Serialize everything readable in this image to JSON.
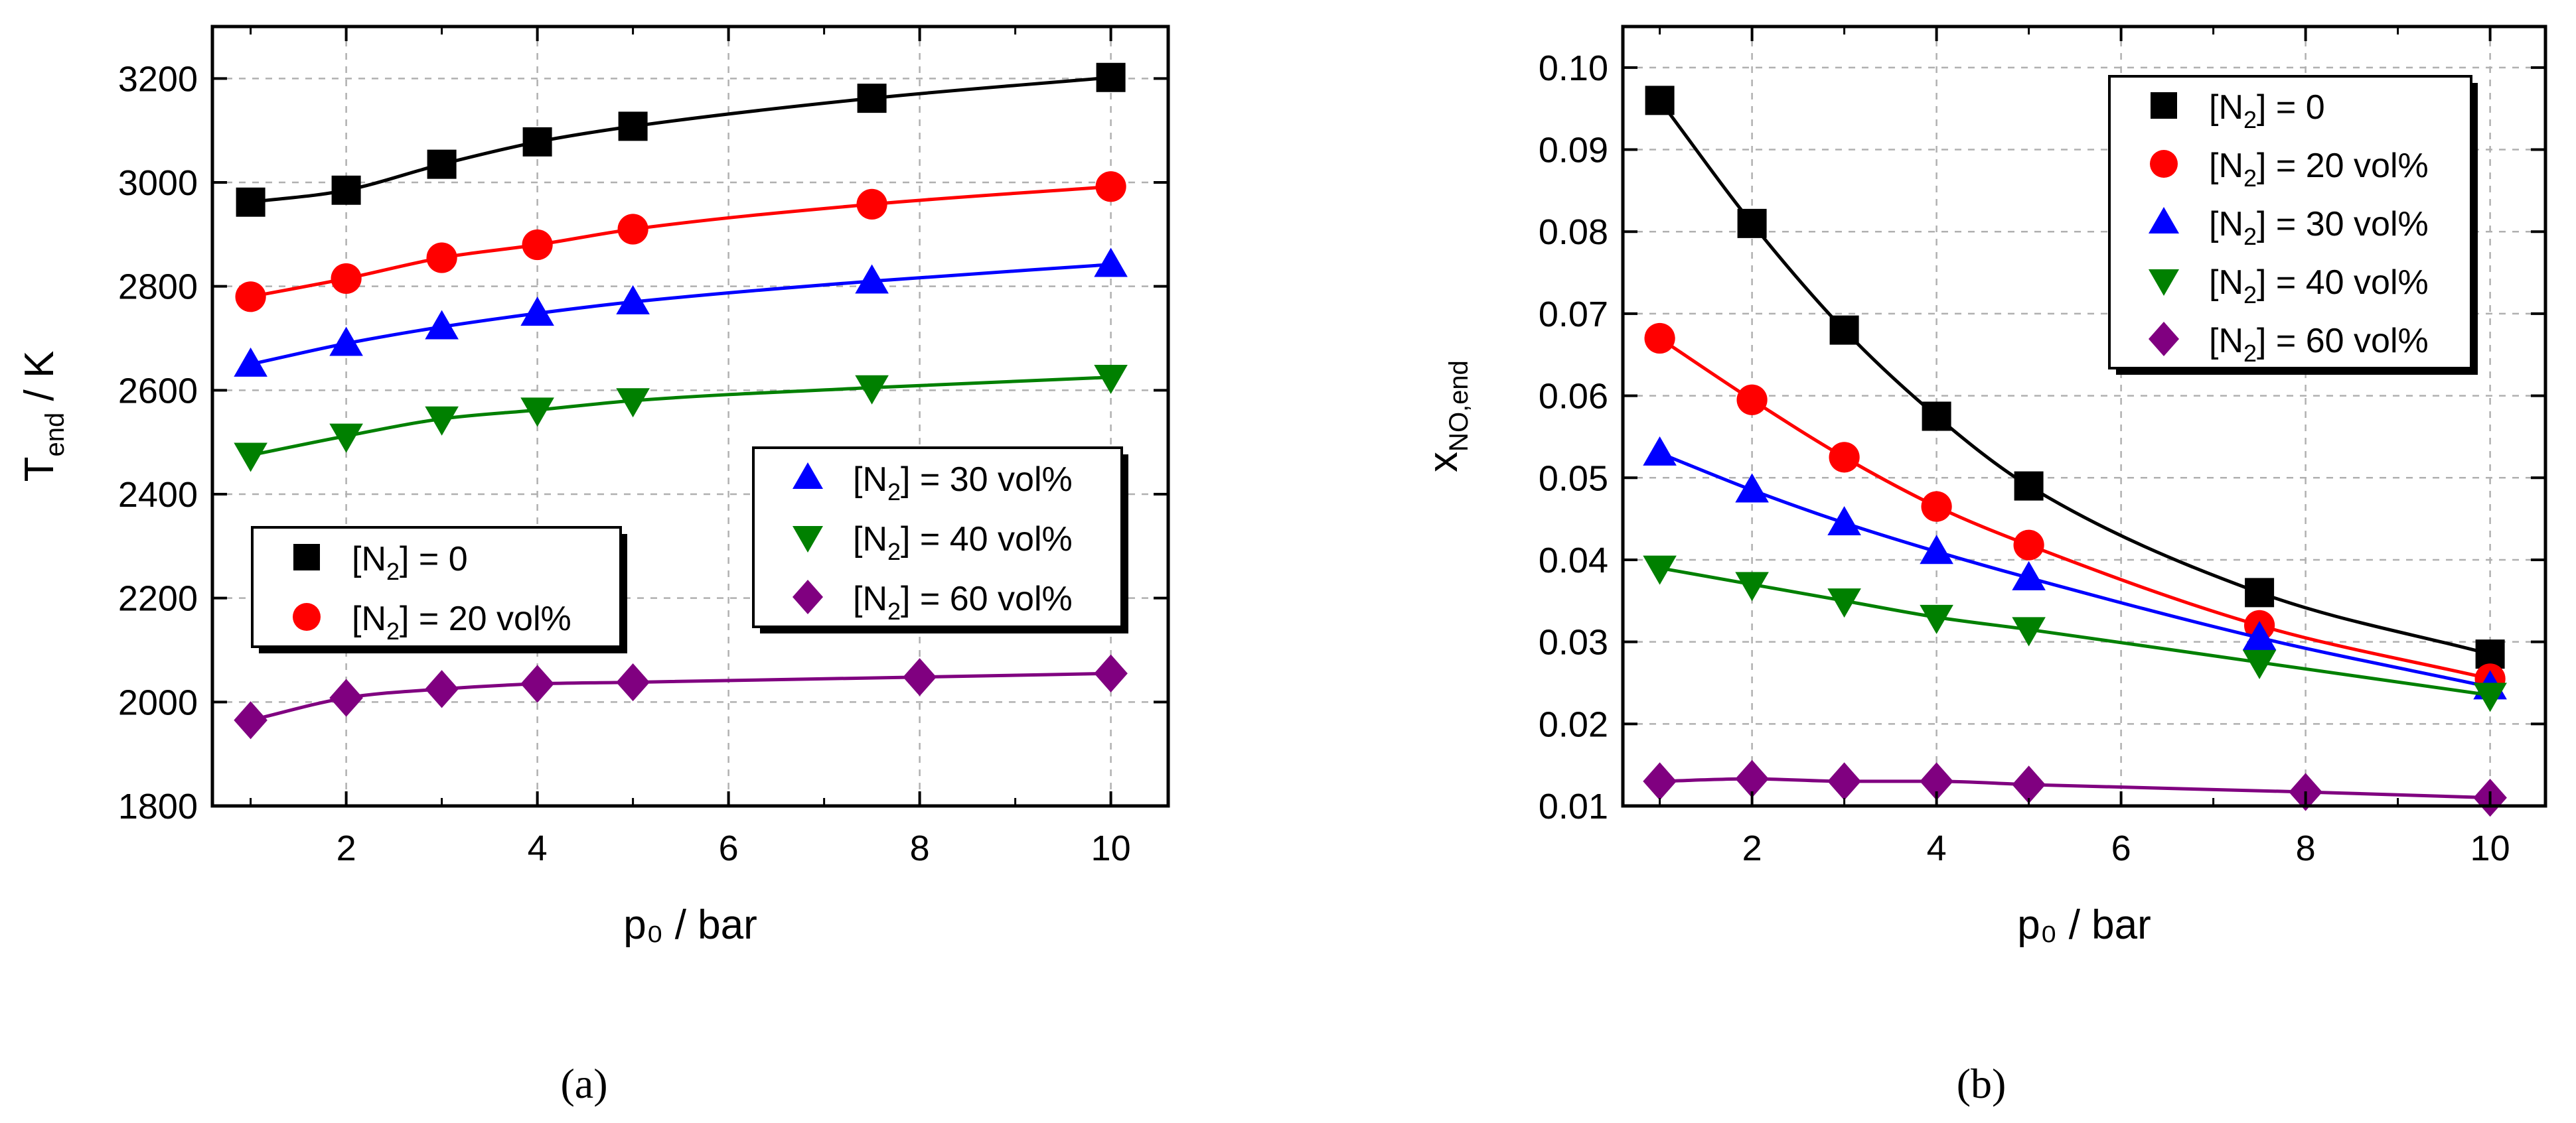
{
  "figure": {
    "caption_a": "(a)",
    "caption_b": "(b)"
  },
  "chart_data": [
    {
      "type": "line",
      "panel": "a",
      "xlabel": "p₀ / bar",
      "ylabel": "T_end / K",
      "xlim": [
        0.6,
        10.6
      ],
      "ylim": [
        1800,
        3300
      ],
      "xticks": [
        2,
        4,
        6,
        8,
        10
      ],
      "yticks": [
        1800,
        2000,
        2200,
        2400,
        2600,
        2800,
        3000,
        3200
      ],
      "grid": true,
      "legends": [
        {
          "placement": "center-left",
          "entries": [
            "[N2] = 0",
            "[N2] = 20 vol%"
          ]
        },
        {
          "placement": "center-right",
          "entries": [
            "[N2] = 30 vol%",
            "[N2] = 40 vol%",
            "[N2] = 60 vol%"
          ]
        }
      ],
      "series": [
        {
          "name": "[N2] = 0",
          "label_main": "[N",
          "label_sub": "2",
          "label_rest": "] = 0",
          "color": "#000000",
          "marker": "square",
          "x": [
            1,
            2,
            3,
            4,
            5,
            7.5,
            10
          ],
          "values": [
            2962,
            2985,
            3035,
            3078,
            3108,
            3162,
            3202
          ]
        },
        {
          "name": "[N2] = 20 vol%",
          "label_main": "[N",
          "label_sub": "2",
          "label_rest": "] = 20 vol%",
          "color": "#ff0000",
          "marker": "circle",
          "x": [
            1,
            2,
            3,
            4,
            5,
            7.5,
            10
          ],
          "values": [
            2780,
            2815,
            2855,
            2880,
            2910,
            2958,
            2992
          ]
        },
        {
          "name": "[N2] = 30 vol%",
          "label_main": "[N",
          "label_sub": "2",
          "label_rest": "] = 30 vol%",
          "color": "#0000ff",
          "marker": "triangle-up",
          "x": [
            1,
            2,
            3,
            4,
            5,
            7.5,
            10
          ],
          "values": [
            2650,
            2690,
            2722,
            2748,
            2770,
            2810,
            2842
          ]
        },
        {
          "name": "[N2] = 40 vol%",
          "label_main": "[N",
          "label_sub": "2",
          "label_rest": "] = 40 vol%",
          "color": "#008000",
          "marker": "triangle-down",
          "x": [
            1,
            2,
            3,
            4,
            5,
            7.5,
            10
          ],
          "values": [
            2475,
            2512,
            2545,
            2562,
            2580,
            2605,
            2625
          ]
        },
        {
          "name": "[N2] = 60 vol%",
          "label_main": "[N",
          "label_sub": "2",
          "label_rest": "] = 60 vol%",
          "color": "#800080",
          "marker": "diamond",
          "x": [
            1,
            2,
            3,
            4,
            5,
            8,
            10
          ],
          "values": [
            1965,
            2008,
            2025,
            2035,
            2038,
            2048,
            2055
          ]
        }
      ]
    },
    {
      "type": "line",
      "panel": "b",
      "xlabel": "p₀ / bar",
      "ylabel": "x_NO,end",
      "xlim": [
        0.6,
        10.6
      ],
      "ylim": [
        0.01,
        0.105
      ],
      "xticks": [
        2,
        4,
        6,
        8,
        10
      ],
      "yticks": [
        0.01,
        0.02,
        0.03,
        0.04,
        0.05,
        0.06,
        0.07,
        0.08,
        0.09,
        0.1
      ],
      "ytick_labels": [
        "0.01",
        "0.02",
        "0.03",
        "0.04",
        "0.05",
        "0.06",
        "0.07",
        "0.08",
        "0.09",
        "0.10"
      ],
      "grid": true,
      "legends": [
        {
          "placement": "top-right",
          "entries": [
            "[N2] = 0",
            "[N2] = 20 vol%",
            "[N2] = 30 vol%",
            "[N2] = 40 vol%",
            "[N2] = 60 vol%"
          ]
        }
      ],
      "series": [
        {
          "name": "[N2] = 0",
          "label_main": "[N",
          "label_sub": "2",
          "label_rest": "] = 0",
          "color": "#000000",
          "marker": "square",
          "x": [
            1,
            2,
            3,
            4,
            5,
            7.5,
            10
          ],
          "values": [
            0.096,
            0.081,
            0.068,
            0.0575,
            0.049,
            0.036,
            0.0285
          ]
        },
        {
          "name": "[N2] = 20 vol%",
          "label_main": "[N",
          "label_sub": "2",
          "label_rest": "] = 20 vol%",
          "color": "#ff0000",
          "marker": "circle",
          "x": [
            1,
            2,
            3,
            4,
            5,
            7.5,
            10
          ],
          "values": [
            0.067,
            0.0595,
            0.0525,
            0.0465,
            0.0418,
            0.032,
            0.0255
          ]
        },
        {
          "name": "[N2] = 30 vol%",
          "label_main": "[N",
          "label_sub": "2",
          "label_rest": "] = 30 vol%",
          "color": "#0000ff",
          "marker": "triangle-up",
          "x": [
            1,
            2,
            3,
            4,
            5,
            7.5,
            10
          ],
          "values": [
            0.053,
            0.0485,
            0.0445,
            0.041,
            0.0378,
            0.0305,
            0.0245
          ]
        },
        {
          "name": "[N2] = 40 vol%",
          "label_main": "[N",
          "label_sub": "2",
          "label_rest": "] = 40 vol%",
          "color": "#008000",
          "marker": "triangle-down",
          "x": [
            1,
            2,
            3,
            4,
            5,
            7.5,
            10
          ],
          "values": [
            0.039,
            0.037,
            0.035,
            0.033,
            0.0315,
            0.0275,
            0.0235
          ]
        },
        {
          "name": "[N2] = 60 vol%",
          "label_main": "[N",
          "label_sub": "2",
          "label_rest": "] = 60 vol%",
          "color": "#800080",
          "marker": "diamond",
          "x": [
            1,
            2,
            3,
            4,
            5,
            8,
            10
          ],
          "values": [
            0.013,
            0.0133,
            0.013,
            0.013,
            0.0126,
            0.0117,
            0.011
          ]
        }
      ]
    }
  ]
}
